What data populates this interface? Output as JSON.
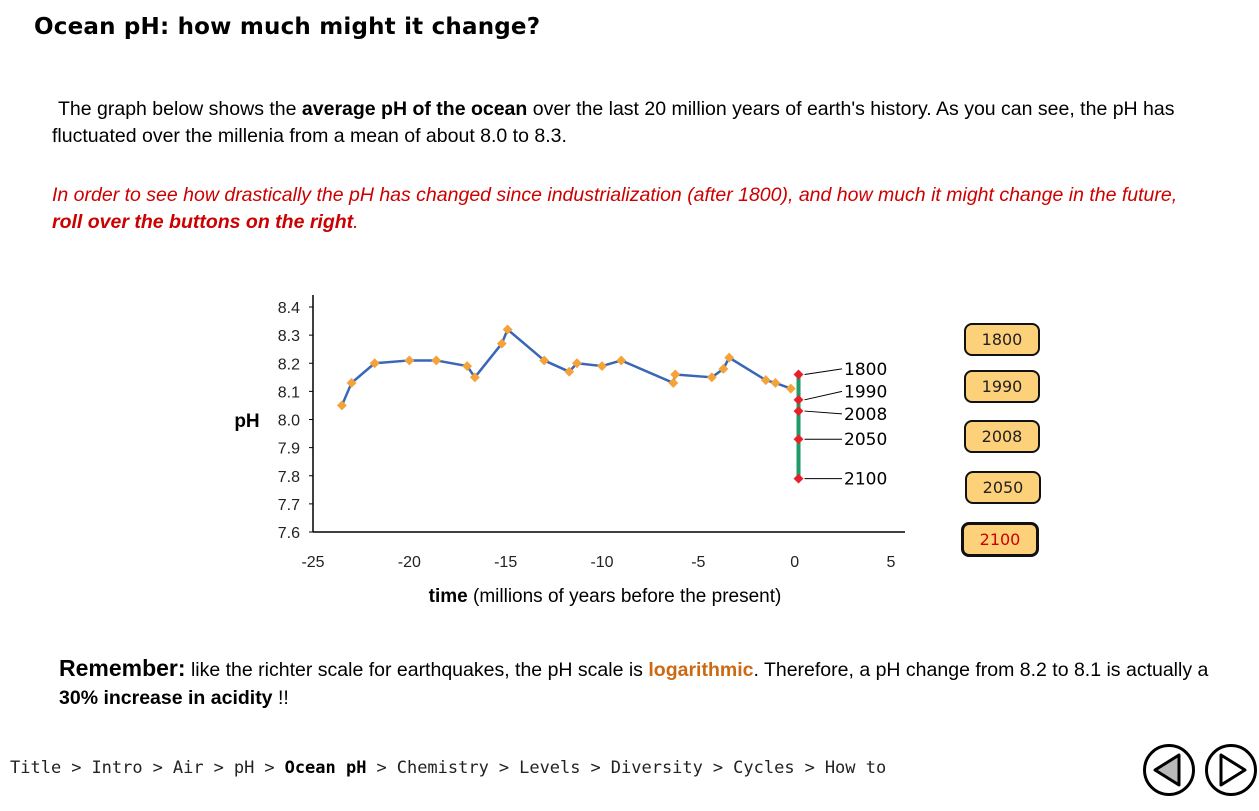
{
  "page": {
    "title": "Ocean pH: how much might it change?",
    "intro": {
      "t1": "The graph below shows the ",
      "b1": "average pH of the ocean",
      "t2": " over the last 20 million years of earth's history.  As you can see, the pH has fluctuated over the millenia from a mean of about 8.0 to 8.3."
    },
    "instruction": {
      "t1": "In order to see how drastically the pH has changed since industrialization (after 1800), and how much it might change in the future, ",
      "b1": "roll over the buttons on the right",
      "t2": "."
    },
    "remember": {
      "label": "Remember:",
      "t1": " like the richter scale for earthquakes, the pH scale is ",
      "log": "logarithmic",
      "t2": ".  Therefore, a pH change from 8.2 to 8.1 is actually a ",
      "b1": "30% increase in acidity",
      "t3": " !!"
    }
  },
  "buttons": [
    {
      "label": "1800",
      "active": false
    },
    {
      "label": "1990",
      "active": false
    },
    {
      "label": "2008",
      "active": false
    },
    {
      "label": "2050",
      "active": false
    },
    {
      "label": "2100",
      "active": true
    }
  ],
  "nav": {
    "items": [
      "Title",
      "Intro",
      "Air",
      "pH",
      "Ocean pH",
      "Chemistry",
      "Levels",
      "Diversity",
      "Cycles",
      "How to"
    ],
    "current": "Ocean pH",
    "separator": ">"
  },
  "colors": {
    "line": "#3a66b8",
    "marker": "#f4a23a",
    "future_marker": "#e8202a",
    "future_bar": "#1f9a6a",
    "button_fill": "#fdd17a",
    "active_text": "#cc0000",
    "highlight_orange": "#cc6a14"
  },
  "chart_data": {
    "type": "line",
    "title": "",
    "xlabel_bold": "time",
    "xlabel_rest": " (millions of years before the present)",
    "ylabel": "pH",
    "xlim": [
      -25,
      5
    ],
    "ylim": [
      7.6,
      8.4
    ],
    "x_ticks": [
      -25,
      -20,
      -15,
      -10,
      -5,
      0,
      5
    ],
    "y_ticks": [
      7.6,
      7.7,
      7.8,
      7.9,
      8.0,
      8.1,
      8.2,
      8.3,
      8.4
    ],
    "y_tick_labels": [
      "7.6",
      "7.7",
      "7.8",
      "7.9",
      "8.0",
      "8.1",
      "8.2",
      "8.3",
      "8.4"
    ],
    "series": [
      {
        "x": [
          -23.5,
          -23.0,
          -21.8,
          -20.0,
          -18.6,
          -17.0,
          -16.6,
          -15.2,
          -14.9,
          -13.0,
          -11.7,
          -11.3,
          -10.0,
          -9.0,
          -6.3,
          -6.2,
          -4.3,
          -3.7,
          -3.4,
          -1.5,
          -1.0,
          -0.2
        ],
        "y": [
          8.05,
          8.13,
          8.2,
          8.21,
          8.21,
          8.19,
          8.15,
          8.27,
          8.32,
          8.21,
          8.17,
          8.2,
          8.19,
          8.21,
          8.13,
          8.16,
          8.15,
          8.18,
          8.22,
          8.14,
          8.13,
          8.11
        ]
      }
    ],
    "future": [
      {
        "year": "1800",
        "x": 0.2,
        "y": 8.16
      },
      {
        "year": "1990",
        "x": 0.2,
        "y": 8.07
      },
      {
        "year": "2008",
        "x": 0.2,
        "y": 8.03
      },
      {
        "year": "2050",
        "x": 0.2,
        "y": 7.93
      },
      {
        "year": "2100",
        "x": 0.2,
        "y": 7.79
      }
    ],
    "future_labels": [
      {
        "text": "1800",
        "label_y": 8.18
      },
      {
        "text": "1990",
        "label_y": 8.1
      },
      {
        "text": "2008",
        "label_y": 8.02
      },
      {
        "text": "2050",
        "label_y": 7.93
      },
      {
        "text": "2100",
        "label_y": 7.79
      }
    ]
  }
}
